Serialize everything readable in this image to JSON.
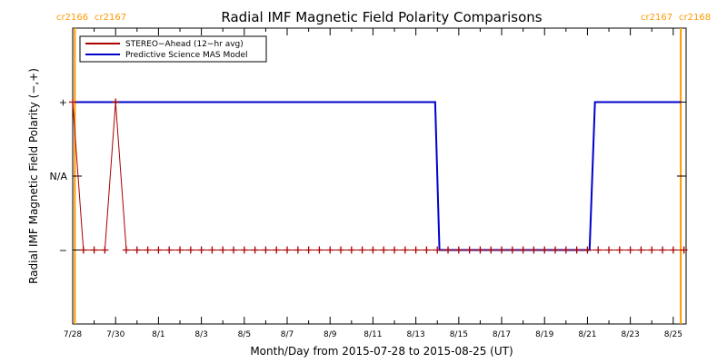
{
  "chart_data": {
    "type": "line",
    "title": "Radial IMF Magnetic Field Polarity Comparisons",
    "xlabel": "Month/Day from 2015-07-28 to 2015-08-25 (UT)",
    "ylabel": "Radial IMF Magnetic Field Polarity (−,+)",
    "x_range_days": [
      0,
      28.6
    ],
    "xtick_values": [
      0,
      2,
      4,
      6,
      8,
      10,
      12,
      14,
      16,
      18,
      20,
      22,
      24,
      26,
      28
    ],
    "xtick_labels": [
      "7/28",
      "7/30",
      "8/1",
      "8/3",
      "8/5",
      "8/7",
      "8/9",
      "8/11",
      "8/13",
      "8/15",
      "8/17",
      "8/19",
      "8/21",
      "8/23",
      "8/25"
    ],
    "ylim": [
      -2,
      2
    ],
    "ytick_values": [
      1,
      0,
      -1
    ],
    "ytick_labels": [
      "+",
      "N/A",
      "−"
    ],
    "rotation_markers": [
      {
        "x": 0.1,
        "left_label": "cr2166",
        "right_label": "cr2167",
        "color": "#ff9900"
      },
      {
        "x": 28.35,
        "left_label": "cr2167",
        "right_label": "cr2168",
        "color": "#ff9900"
      }
    ],
    "series": [
      {
        "name": "STEREO−Ahead (12−hr avg)",
        "color": "#aa0000",
        "marker": "+",
        "points": [
          [
            0.0,
            1
          ],
          [
            0.5,
            -1
          ],
          [
            1.0,
            -1
          ],
          [
            1.5,
            -1
          ],
          [
            2.0,
            1
          ],
          [
            2.5,
            -1
          ],
          [
            3.0,
            -1
          ],
          [
            3.5,
            -1
          ],
          [
            4.0,
            -1
          ],
          [
            4.5,
            -1
          ],
          [
            5.0,
            -1
          ],
          [
            5.5,
            -1
          ],
          [
            6.0,
            -1
          ],
          [
            6.5,
            -1
          ],
          [
            7.0,
            -1
          ],
          [
            7.5,
            -1
          ],
          [
            8.0,
            -1
          ],
          [
            8.5,
            -1
          ],
          [
            9.0,
            -1
          ],
          [
            9.5,
            -1
          ],
          [
            10.0,
            -1
          ],
          [
            10.5,
            -1
          ],
          [
            11.0,
            -1
          ],
          [
            11.5,
            -1
          ],
          [
            12.0,
            -1
          ],
          [
            12.5,
            -1
          ],
          [
            13.0,
            -1
          ],
          [
            13.5,
            -1
          ],
          [
            14.0,
            -1
          ],
          [
            14.5,
            -1
          ],
          [
            15.0,
            -1
          ],
          [
            15.5,
            -1
          ],
          [
            16.0,
            -1
          ],
          [
            16.5,
            -1
          ],
          [
            17.0,
            -1
          ],
          [
            17.5,
            -1
          ],
          [
            18.0,
            -1
          ],
          [
            18.5,
            -1
          ],
          [
            19.0,
            -1
          ],
          [
            19.5,
            -1
          ],
          [
            20.0,
            -1
          ],
          [
            20.5,
            -1
          ],
          [
            21.0,
            -1
          ],
          [
            21.5,
            -1
          ],
          [
            22.0,
            -1
          ],
          [
            22.5,
            -1
          ],
          [
            23.0,
            -1
          ],
          [
            23.5,
            -1
          ],
          [
            24.0,
            -1
          ],
          [
            24.5,
            -1
          ],
          [
            25.0,
            -1
          ],
          [
            25.5,
            -1
          ],
          [
            26.0,
            -1
          ],
          [
            26.5,
            -1
          ],
          [
            27.0,
            -1
          ],
          [
            27.5,
            -1
          ],
          [
            28.0,
            -1
          ],
          [
            28.5,
            -1
          ]
        ]
      },
      {
        "name": "Predictive Science MAS Model",
        "color": "#0000cc",
        "marker": "none",
        "points": [
          [
            0.1,
            1
          ],
          [
            16.9,
            1
          ],
          [
            17.1,
            -1
          ],
          [
            24.1,
            -1
          ],
          [
            24.35,
            1
          ],
          [
            28.35,
            1
          ]
        ]
      }
    ],
    "legend_position": "top-left"
  }
}
